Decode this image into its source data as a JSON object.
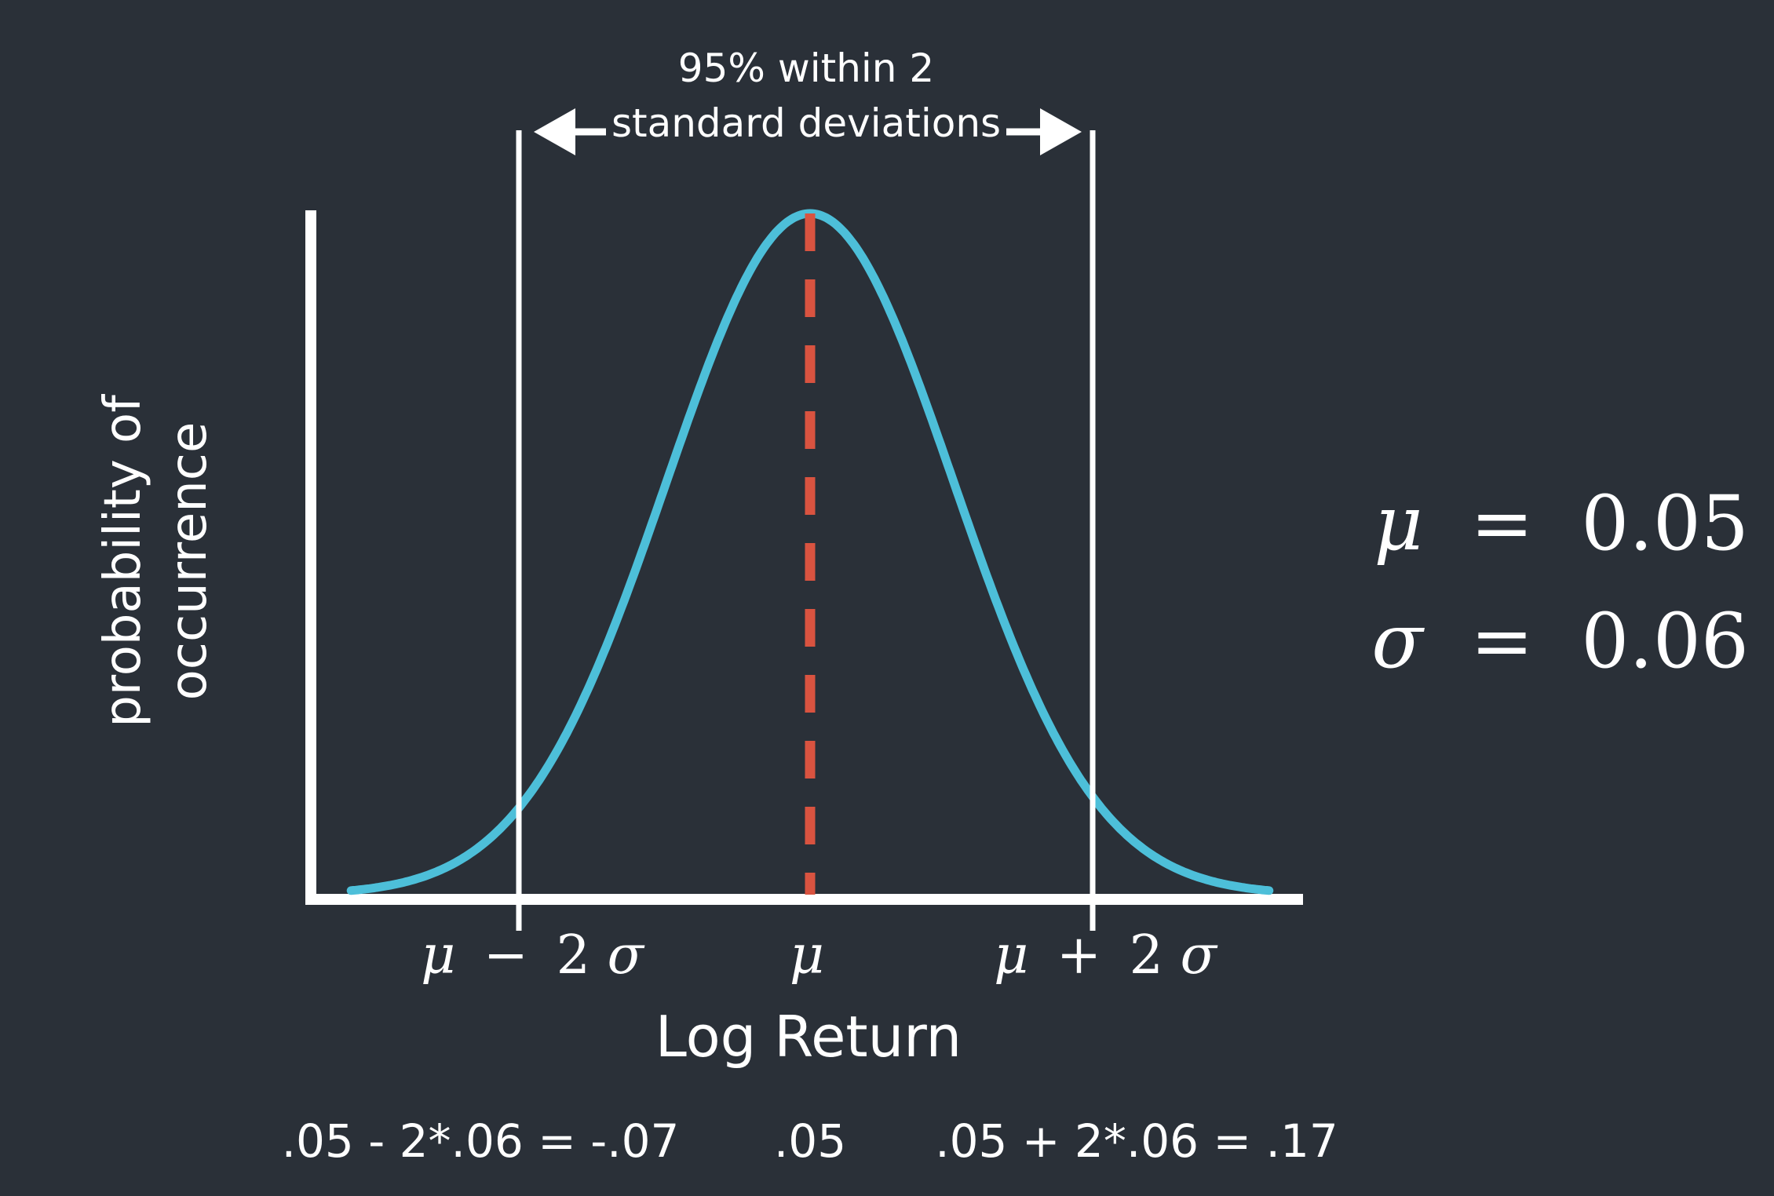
{
  "chart_data": {
    "type": "line",
    "distribution": "normal",
    "mean": 0.05,
    "std": 0.06,
    "ylabel_line1": "probability of",
    "ylabel_line2": "occurrence",
    "xlabel": "Log Return",
    "annotation_line1": "95% within 2",
    "annotation_line2": "standard deviations",
    "ticks": {
      "left": {
        "symbol_mu": "μ",
        "op": "−",
        "two": "2",
        "sigma": "σ"
      },
      "center": {
        "symbol_mu": "μ"
      },
      "right": {
        "symbol_mu": "μ",
        "op": "+",
        "two": "2",
        "sigma": "σ"
      }
    },
    "computed": {
      "left": ".05 - 2*.06 = -.07",
      "center": ".05",
      "right": ".05 + 2*.06 = .17"
    },
    "params": {
      "mu_symbol": "μ",
      "mu_eq": "=",
      "mu_value": "0.05",
      "sigma_symbol": "σ",
      "sigma_eq": "=",
      "sigma_value": "0.06"
    },
    "colors": {
      "background": "#2a3038",
      "curve": "#4dbfd9",
      "mean_line": "#d95340",
      "axes": "#ffffff"
    }
  }
}
